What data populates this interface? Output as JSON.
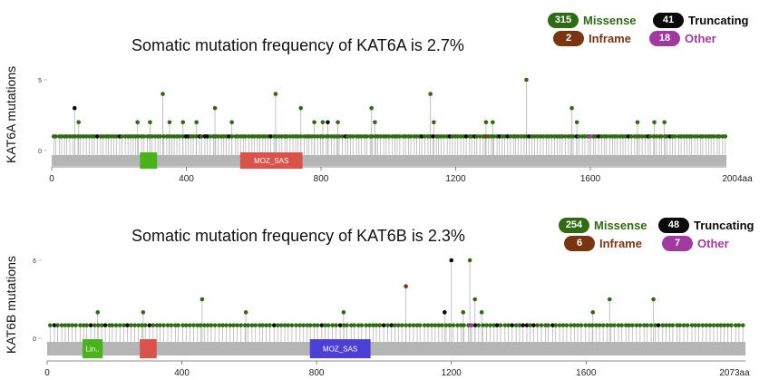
{
  "colors": {
    "missense": "#2f6b12",
    "truncating": "#0a0a0a",
    "inframe": "#7a3412",
    "other": "#a13aa0",
    "stem": "#bdbdbd",
    "protein_bar": "#b5b5b5"
  },
  "legend_labels": {
    "missense": "Missense",
    "truncating": "Truncating",
    "inframe": "Inframe",
    "other": "Other"
  },
  "chart_data": [
    {
      "type": "lollipop",
      "gene": "KAT6A",
      "title": "Somatic mutation frequency of KAT6A is 2.7%",
      "ylabel": "KAT6A mutations",
      "protein_length": 2004,
      "length_label": "2004aa",
      "ylim": [
        0,
        5
      ],
      "yticks": [
        "0",
        "5"
      ],
      "xticks": [
        {
          "value": 0,
          "label": "0"
        },
        {
          "value": 400,
          "label": "400"
        },
        {
          "value": 800,
          "label": "800"
        },
        {
          "value": 1200,
          "label": "1200"
        },
        {
          "value": 1600,
          "label": "1600"
        }
      ],
      "legend": {
        "missense": "315",
        "truncating": "41",
        "inframe": "2",
        "other": "18"
      },
      "domains": [
        {
          "name": "",
          "start": 262,
          "end": 313,
          "color": "#4ab21a"
        },
        {
          "name": "MOZ_SAS",
          "start": 560,
          "end": 745,
          "color": "#d9534a"
        }
      ],
      "base_range": [
        5,
        2000
      ],
      "base_count": 245,
      "mutations": [
        {
          "pos": 68,
          "count": 3,
          "type": "truncating"
        },
        {
          "pos": 80,
          "count": 2,
          "type": "missense"
        },
        {
          "pos": 255,
          "count": 2,
          "type": "missense"
        },
        {
          "pos": 292,
          "count": 2,
          "type": "missense"
        },
        {
          "pos": 330,
          "count": 4,
          "type": "missense"
        },
        {
          "pos": 350,
          "count": 2,
          "type": "missense"
        },
        {
          "pos": 390,
          "count": 2,
          "type": "missense"
        },
        {
          "pos": 430,
          "count": 2,
          "type": "missense"
        },
        {
          "pos": 485,
          "count": 3,
          "type": "missense"
        },
        {
          "pos": 535,
          "count": 2,
          "type": "missense"
        },
        {
          "pos": 665,
          "count": 4,
          "type": "missense"
        },
        {
          "pos": 740,
          "count": 3,
          "type": "missense"
        },
        {
          "pos": 780,
          "count": 2,
          "type": "missense"
        },
        {
          "pos": 805,
          "count": 2,
          "type": "missense"
        },
        {
          "pos": 820,
          "count": 2,
          "type": "truncating"
        },
        {
          "pos": 850,
          "count": 2,
          "type": "missense"
        },
        {
          "pos": 950,
          "count": 3,
          "type": "missense"
        },
        {
          "pos": 960,
          "count": 2,
          "type": "missense"
        },
        {
          "pos": 1125,
          "count": 4,
          "type": "missense"
        },
        {
          "pos": 1135,
          "count": 2,
          "type": "missense"
        },
        {
          "pos": 1290,
          "count": 2,
          "type": "missense"
        },
        {
          "pos": 1310,
          "count": 2,
          "type": "missense"
        },
        {
          "pos": 1410,
          "count": 5,
          "type": "missense"
        },
        {
          "pos": 1545,
          "count": 3,
          "type": "missense"
        },
        {
          "pos": 1560,
          "count": 2,
          "type": "missense"
        },
        {
          "pos": 1740,
          "count": 2,
          "type": "missense"
        },
        {
          "pos": 1790,
          "count": 2,
          "type": "missense"
        },
        {
          "pos": 1820,
          "count": 2,
          "type": "missense"
        },
        {
          "pos": 1290,
          "count": 1,
          "type": "inframe"
        },
        {
          "pos": 1600,
          "count": 1,
          "type": "other"
        }
      ]
    },
    {
      "type": "lollipop",
      "gene": "KAT6B",
      "title": "Somatic mutation frequency of KAT6B is 2.3%",
      "ylabel": "KAT6B mutations",
      "protein_length": 2073,
      "length_label": "2073aa",
      "ylim": [
        0,
        6
      ],
      "yticks": [
        "0",
        "6"
      ],
      "xticks": [
        {
          "value": 0,
          "label": "0"
        },
        {
          "value": 400,
          "label": "400"
        },
        {
          "value": 800,
          "label": "800"
        },
        {
          "value": 1200,
          "label": "1200"
        },
        {
          "value": 1600,
          "label": "1600"
        }
      ],
      "legend": {
        "missense": "254",
        "truncating": "48",
        "inframe": "6",
        "other": "7"
      },
      "domains": [
        {
          "name": "Lin..",
          "start": 105,
          "end": 165,
          "color": "#4ab21a"
        },
        {
          "name": "",
          "start": 275,
          "end": 325,
          "color": "#d9534a"
        },
        {
          "name": "MOZ_SAS",
          "start": 780,
          "end": 960,
          "color": "#4b3fd6"
        }
      ],
      "base_range": [
        10,
        2065
      ],
      "base_count": 190,
      "mutations": [
        {
          "pos": 150,
          "count": 2,
          "type": "missense"
        },
        {
          "pos": 285,
          "count": 2,
          "type": "missense"
        },
        {
          "pos": 460,
          "count": 3,
          "type": "missense"
        },
        {
          "pos": 590,
          "count": 2,
          "type": "missense"
        },
        {
          "pos": 880,
          "count": 2,
          "type": "missense"
        },
        {
          "pos": 1065,
          "count": 4,
          "type": "inframe"
        },
        {
          "pos": 1180,
          "count": 2,
          "type": "truncating"
        },
        {
          "pos": 1200,
          "count": 6,
          "type": "truncating"
        },
        {
          "pos": 1235,
          "count": 2,
          "type": "missense"
        },
        {
          "pos": 1255,
          "count": 6,
          "type": "missense"
        },
        {
          "pos": 1270,
          "count": 3,
          "type": "missense"
        },
        {
          "pos": 1290,
          "count": 2,
          "type": "missense"
        },
        {
          "pos": 1620,
          "count": 2,
          "type": "missense"
        },
        {
          "pos": 1670,
          "count": 3,
          "type": "missense"
        },
        {
          "pos": 1800,
          "count": 3,
          "type": "missense"
        },
        {
          "pos": 1260,
          "count": 1,
          "type": "other"
        }
      ]
    }
  ]
}
